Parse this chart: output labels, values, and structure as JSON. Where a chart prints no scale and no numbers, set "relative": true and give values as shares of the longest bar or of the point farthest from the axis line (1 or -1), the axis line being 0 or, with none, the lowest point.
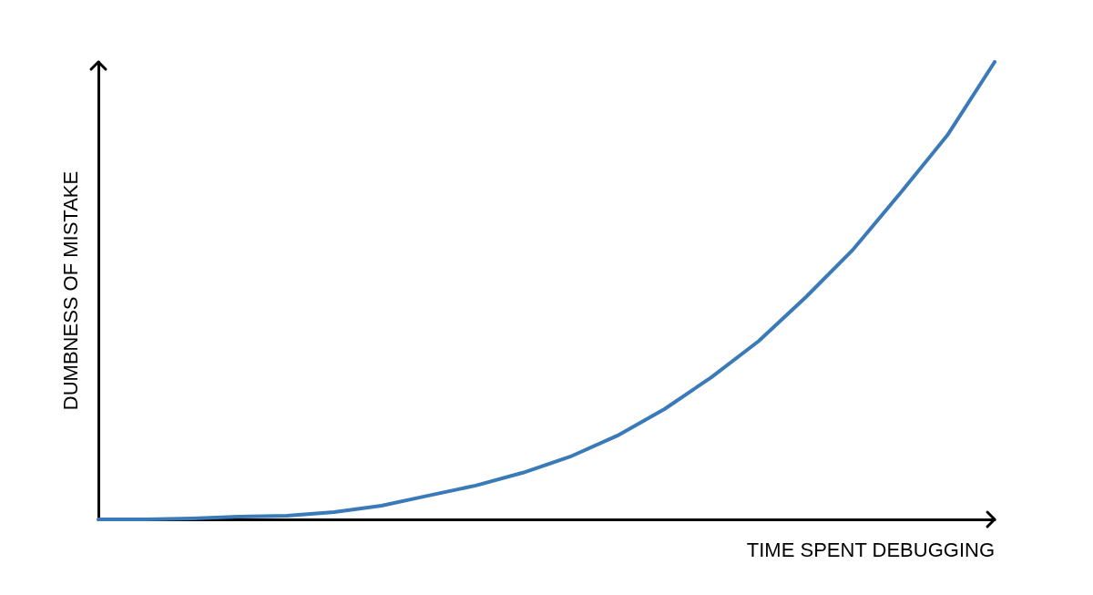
{
  "chart_data": {
    "type": "line",
    "xlabel": "TIME SPENT DEBUGGING",
    "ylabel": "DUMBNESS OF MISTAKE",
    "relative": true,
    "grid": false,
    "marker": "none",
    "line_style": "solid",
    "categories": [
      null,
      null,
      null,
      null,
      null,
      null,
      null,
      null,
      null,
      null,
      null,
      null,
      null,
      null,
      null,
      null,
      null,
      null,
      null,
      null
    ],
    "series": [
      {
        "color": "#3a7ab8",
        "values": [
          0,
          0,
          0.002,
          0.006,
          0.008,
          0.016,
          0.03,
          0.052,
          0.074,
          0.102,
          0.137,
          0.183,
          0.241,
          0.311,
          0.39,
          0.486,
          0.59,
          0.713,
          0.84,
          1
        ]
      }
    ]
  }
}
